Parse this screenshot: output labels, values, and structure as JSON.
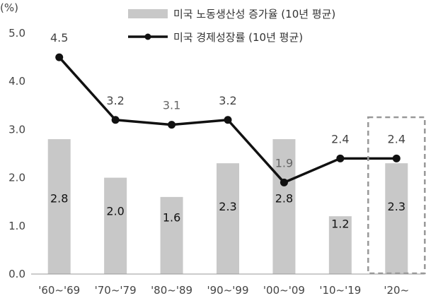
{
  "chart_data": {
    "type": "bar+line",
    "unit_label": "(%)",
    "categories": [
      "'60~'69",
      "'70~'79",
      "'80~'89",
      "'90~'99",
      "'00~'09",
      "'10~'19",
      "'20~"
    ],
    "series": [
      {
        "name": "미국 노동생산성 증가율 (10년 평균)",
        "type": "bar",
        "values": [
          2.8,
          2.0,
          1.6,
          2.3,
          2.8,
          1.2,
          2.3
        ],
        "labels": [
          "2.8",
          "2.0",
          "1.6",
          "2.3",
          "2.8",
          "1.2",
          "2.3"
        ]
      },
      {
        "name": "미국 경제성장률 (10년 평균)",
        "type": "line",
        "values": [
          4.5,
          3.2,
          3.1,
          3.2,
          1.9,
          2.4,
          2.4
        ],
        "labels": [
          "4.5",
          "3.2",
          "3.1",
          "3.2",
          "1.9",
          "2.4",
          "2.4"
        ]
      }
    ],
    "y_ticks": [
      "0.0",
      "1.0",
      "2.0",
      "3.0",
      "4.0",
      "5.0"
    ],
    "ylim": [
      0,
      5
    ],
    "grid": false,
    "legend_position": "top-right",
    "highlight_category": "'20~",
    "colors": {
      "bar": "#c8c8c8",
      "line": "#111111",
      "axis": "#999999",
      "highlight_box": "#999999"
    }
  }
}
